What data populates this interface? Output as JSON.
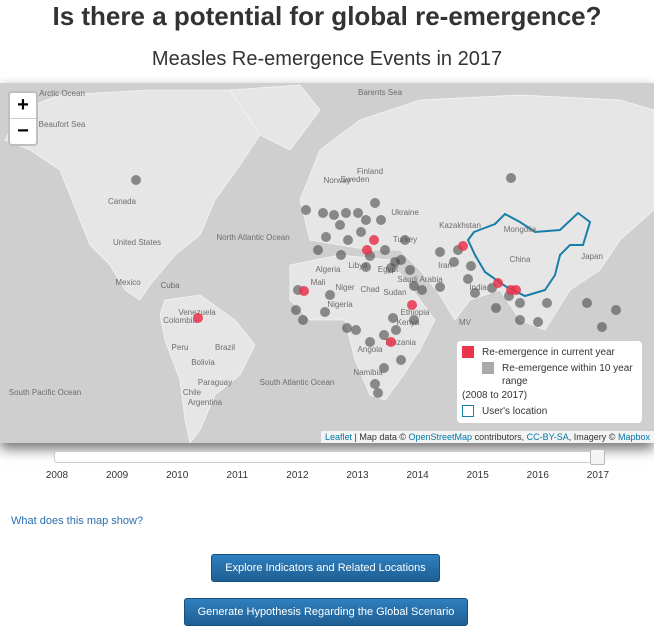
{
  "header": {
    "title": "Is there a potential for global re-emergence?"
  },
  "map": {
    "title": "Measles Re-emergence Events in 2017",
    "zoom_in": "+",
    "zoom_out": "−",
    "labels": [
      "Arctic Ocean",
      "Beaufort Sea",
      "Barents Sea",
      "Canada",
      "United States",
      "Mexico",
      "North Atlantic Ocean",
      "Cuba",
      "Venezuela",
      "Colombia",
      "Peru",
      "Brazil",
      "Bolivia",
      "Paraguay",
      "Chile",
      "Argentina",
      "South Atlantic Ocean",
      "South Pacific Ocean",
      "Norway",
      "Sweden",
      "Finland",
      "Ukraine",
      "Turkey",
      "Algeria",
      "Libya",
      "Egypt",
      "Mali",
      "Niger",
      "Chad",
      "Sudan",
      "Nigeria",
      "Ethiopia",
      "Kenya",
      "Tanzania",
      "Angola",
      "Namibia",
      "Saudi Arabia",
      "Iran",
      "Kazakhstan",
      "Mongolia",
      "China",
      "Japan",
      "India",
      "MV"
    ],
    "legend": {
      "current": "Re-emergence in current year",
      "range": "Re-emergence within 10 year range",
      "range_years": "(2008 to 2017)",
      "user": "User's location"
    },
    "attribution": {
      "leaflet": "Leaflet",
      "map_data": "| Map data ©",
      "osm": "OpenStreetMap",
      "contributors": "contributors,",
      "license": "CC-BY-SA",
      "imagery": ", Imagery ©",
      "mapbox": "Mapbox"
    }
  },
  "slider": {
    "years": [
      2008,
      2009,
      2010,
      2011,
      2012,
      2013,
      2014,
      2015,
      2016,
      2017
    ]
  },
  "link": "What does this map show?",
  "buttons": [
    "Explore Indicators and Related Locations",
    "Generate Hypothesis Regarding the Global Scenario"
  ]
}
